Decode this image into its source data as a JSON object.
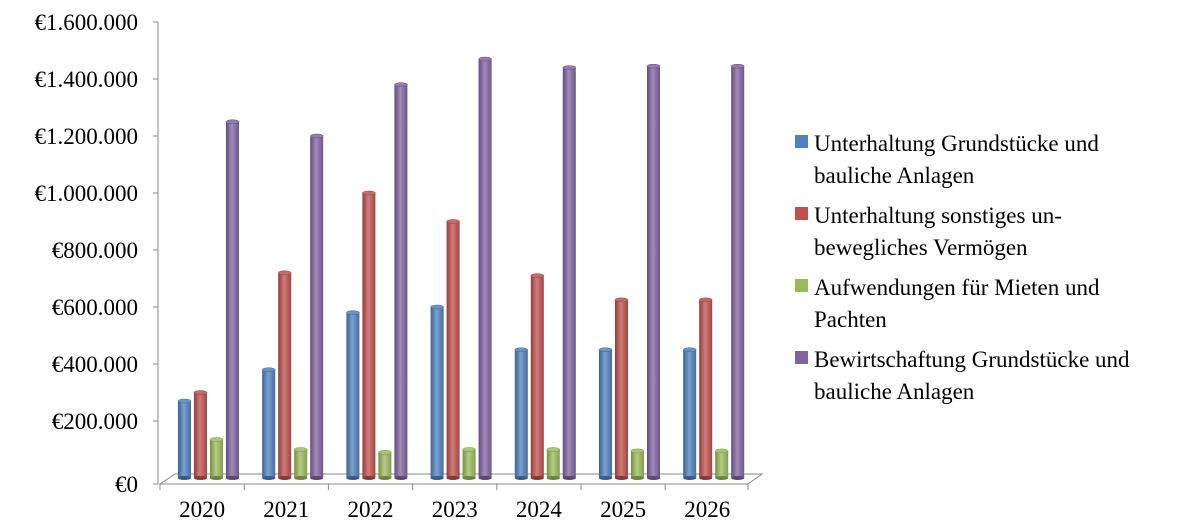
{
  "chart_data": {
    "type": "bar",
    "categories": [
      "2020",
      "2021",
      "2022",
      "2023",
      "2024",
      "2025",
      "2026"
    ],
    "ylim": [
      0,
      1600000
    ],
    "y_ticks": [
      "€0",
      "€200.000",
      "€400.000",
      "€600.000",
      "€800.000",
      "€1.000.000",
      "€1.200.000",
      "€1.400.000",
      "€1.600.000"
    ],
    "tick_values": [
      0,
      200000,
      400000,
      600000,
      800000,
      1000000,
      1200000,
      1400000,
      1600000
    ],
    "legend_position": "right",
    "series": [
      {
        "name": "Unterhaltung Grundstücke und bauliche Anlagen",
        "color": "#4F81BD",
        "values": [
          270000,
          380000,
          580000,
          600000,
          450000,
          450000,
          450000
        ]
      },
      {
        "name": "Unterhaltung sonstiges un- bewegliches Vermögen",
        "color": "#C0504D",
        "values": [
          300000,
          720000,
          1000000,
          900000,
          710000,
          625000,
          625000
        ]
      },
      {
        "name": "Aufwendungen für Mieten und Pachten",
        "color": "#9BBB59",
        "values": [
          135000,
          100000,
          90000,
          100000,
          100000,
          95000,
          95000
        ]
      },
      {
        "name": "Bewirtschaftung Grundstücke und bauliche Anlagen",
        "color": "#8064A2",
        "values": [
          1250000,
          1200000,
          1380000,
          1470000,
          1440000,
          1445000,
          1445000
        ]
      }
    ]
  }
}
